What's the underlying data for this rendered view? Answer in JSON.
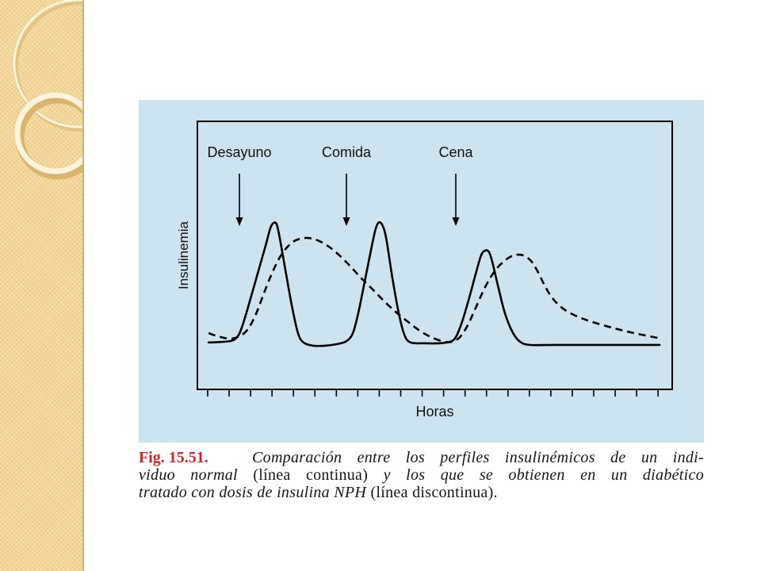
{
  "theme": {
    "sidebar_color": "#f6dca5",
    "panel_color": "#cde4f0",
    "figure_label_color": "#d2232a"
  },
  "figure": {
    "caption": {
      "label": "Fig. 15.51.",
      "line1": "Comparación entre los perfiles insulinémicos de un indi-",
      "line2_a": "viduo normal",
      "line2_b": "(línea continua)",
      "line2_c": "y los que se obtienen en un diabético",
      "line3_a": "tratado con dosis de insulina NPH",
      "line3_b": "(línea discontinua)."
    }
  },
  "chart_data": {
    "type": "line",
    "xlabel": "Horas",
    "ylabel": "Insulinemia",
    "xlim": [
      -0.48,
      21.66
    ],
    "ylim": [
      0,
      100
    ],
    "xticks": [
      0,
      1,
      2,
      3,
      4,
      5,
      6,
      7,
      8,
      9,
      10,
      11,
      12,
      13,
      14,
      15,
      16,
      17,
      18,
      19,
      20,
      21
    ],
    "grid": false,
    "legend": "none",
    "annotations": [
      {
        "text": "Desayuno",
        "x": 1.48,
        "arrow": "down"
      },
      {
        "text": "Comida",
        "x": 6.47,
        "arrow": "down"
      },
      {
        "text": "Cena",
        "x": 11.57,
        "arrow": "down"
      }
    ],
    "series": [
      {
        "line_style": "solid",
        "color": "#000000",
        "points": [
          [
            0.04,
            17.5
          ],
          [
            1.04,
            18.0
          ],
          [
            1.4,
            19.8
          ],
          [
            1.63,
            24.0
          ],
          [
            1.96,
            32.8
          ],
          [
            2.33,
            43.2
          ],
          [
            2.7,
            53.6
          ],
          [
            2.92,
            60.1
          ],
          [
            3.07,
            62.1
          ],
          [
            3.22,
            61.5
          ],
          [
            3.36,
            56.5
          ],
          [
            3.62,
            44.7
          ],
          [
            3.92,
            31.4
          ],
          [
            4.21,
            21.0
          ],
          [
            4.47,
            17.5
          ],
          [
            4.92,
            16.3
          ],
          [
            5.47,
            16.3
          ],
          [
            6.03,
            16.9
          ],
          [
            6.47,
            18.0
          ],
          [
            6.77,
            21.0
          ],
          [
            7.02,
            28.4
          ],
          [
            7.32,
            40.2
          ],
          [
            7.58,
            50.6
          ],
          [
            7.8,
            58.9
          ],
          [
            7.95,
            62.1
          ],
          [
            8.13,
            61.5
          ],
          [
            8.32,
            56.5
          ],
          [
            8.61,
            41.7
          ],
          [
            8.91,
            28.4
          ],
          [
            9.17,
            20.4
          ],
          [
            9.46,
            17.5
          ],
          [
            10.09,
            17.2
          ],
          [
            10.83,
            17.2
          ],
          [
            11.31,
            17.8
          ],
          [
            11.57,
            19.5
          ],
          [
            11.87,
            25.4
          ],
          [
            12.2,
            34.3
          ],
          [
            12.5,
            43.2
          ],
          [
            12.75,
            50.0
          ],
          [
            12.94,
            51.8
          ],
          [
            13.12,
            51.2
          ],
          [
            13.27,
            47.6
          ],
          [
            13.53,
            38.8
          ],
          [
            13.86,
            28.4
          ],
          [
            14.2,
            21.6
          ],
          [
            14.53,
            18.0
          ],
          [
            15.01,
            16.6
          ],
          [
            16.19,
            16.6
          ],
          [
            21.07,
            16.6
          ]
        ]
      },
      {
        "line_style": "dashed",
        "color": "#000000",
        "points": [
          [
            0.04,
            21.0
          ],
          [
            0.48,
            19.8
          ],
          [
            1.04,
            18.9
          ],
          [
            1.48,
            19.8
          ],
          [
            1.85,
            22.2
          ],
          [
            2.22,
            27.5
          ],
          [
            2.59,
            35.2
          ],
          [
            2.96,
            42.6
          ],
          [
            3.33,
            48.8
          ],
          [
            3.7,
            53.0
          ],
          [
            4.1,
            55.6
          ],
          [
            4.55,
            56.5
          ],
          [
            5.03,
            55.9
          ],
          [
            5.55,
            53.8
          ],
          [
            6.06,
            50.6
          ],
          [
            6.62,
            46.2
          ],
          [
            7.17,
            41.4
          ],
          [
            7.73,
            37.0
          ],
          [
            8.28,
            32.5
          ],
          [
            8.84,
            28.4
          ],
          [
            9.39,
            24.9
          ],
          [
            9.94,
            21.6
          ],
          [
            10.5,
            19.2
          ],
          [
            11.02,
            17.8
          ],
          [
            11.39,
            17.8
          ],
          [
            11.76,
            19.5
          ],
          [
            12.13,
            24.0
          ],
          [
            12.5,
            30.5
          ],
          [
            12.94,
            38.2
          ],
          [
            13.38,
            44.1
          ],
          [
            13.83,
            47.9
          ],
          [
            14.27,
            50.0
          ],
          [
            14.71,
            50.0
          ],
          [
            15.08,
            47.9
          ],
          [
            15.38,
            44.1
          ],
          [
            15.71,
            38.8
          ],
          [
            16.08,
            34.0
          ],
          [
            16.56,
            30.2
          ],
          [
            17.23,
            27.2
          ],
          [
            18.04,
            24.9
          ],
          [
            18.96,
            22.8
          ],
          [
            19.88,
            21.0
          ],
          [
            20.99,
            19.2
          ]
        ]
      }
    ]
  }
}
